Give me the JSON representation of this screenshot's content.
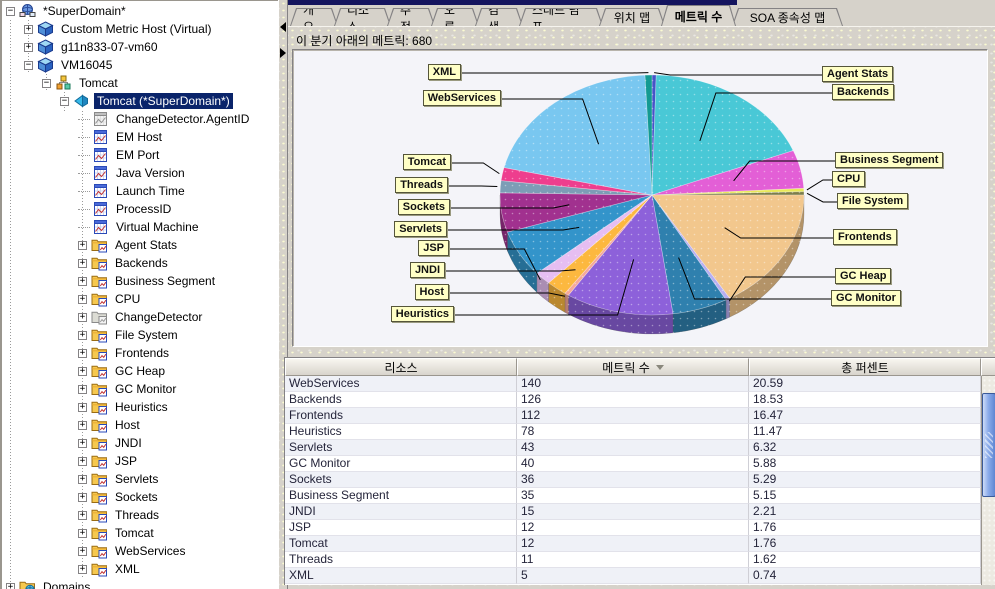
{
  "summary": {
    "text": "이 분기 아래의 메트릭: 680"
  },
  "tabs": {
    "items": [
      {
        "label": "개요",
        "selected": false
      },
      {
        "label": "리소스",
        "selected": false
      },
      {
        "label": "추적",
        "selected": false
      },
      {
        "label": "오류",
        "selected": false
      },
      {
        "label": "검색",
        "selected": false
      },
      {
        "label": "스레드 덤프",
        "selected": false
      },
      {
        "label": "위치 맵",
        "selected": false
      },
      {
        "label": "메트릭 수",
        "selected": true
      },
      {
        "label": "SOA 종속성 맵",
        "selected": false
      }
    ]
  },
  "sidebar": {
    "items": [
      {
        "label": "*SuperDomain*",
        "depth": 0,
        "expander": "-",
        "icon": "domain",
        "selected": false
      },
      {
        "label": "Custom Metric Host (Virtual)",
        "depth": 1,
        "expander": "+",
        "icon": "host",
        "selected": false
      },
      {
        "label": "g11n833-07-vm60",
        "depth": 1,
        "expander": "+",
        "icon": "host",
        "selected": false
      },
      {
        "label": "VM16045",
        "depth": 1,
        "expander": "-",
        "icon": "host",
        "selected": false
      },
      {
        "label": "Tomcat",
        "depth": 2,
        "expander": "-",
        "icon": "process",
        "selected": false
      },
      {
        "label": "Tomcat (*SuperDomain*)",
        "depth": 3,
        "expander": "-",
        "icon": "agent",
        "selected": true
      },
      {
        "label": "ChangeDetector.AgentID",
        "depth": 4,
        "expander": "",
        "icon": "metric-gray",
        "selected": false
      },
      {
        "label": "EM Host",
        "depth": 4,
        "expander": "",
        "icon": "metric",
        "selected": false
      },
      {
        "label": "EM Port",
        "depth": 4,
        "expander": "",
        "icon": "metric",
        "selected": false
      },
      {
        "label": "Java Version",
        "depth": 4,
        "expander": "",
        "icon": "metric",
        "selected": false
      },
      {
        "label": "Launch Time",
        "depth": 4,
        "expander": "",
        "icon": "metric",
        "selected": false
      },
      {
        "label": "ProcessID",
        "depth": 4,
        "expander": "",
        "icon": "metric",
        "selected": false
      },
      {
        "label": "Virtual Machine",
        "depth": 4,
        "expander": "",
        "icon": "metric",
        "selected": false
      },
      {
        "label": "Agent Stats",
        "depth": 4,
        "expander": "+",
        "icon": "folder",
        "selected": false
      },
      {
        "label": "Backends",
        "depth": 4,
        "expander": "+",
        "icon": "folder",
        "selected": false
      },
      {
        "label": "Business Segment",
        "depth": 4,
        "expander": "+",
        "icon": "folder",
        "selected": false
      },
      {
        "label": "CPU",
        "depth": 4,
        "expander": "+",
        "icon": "folder",
        "selected": false
      },
      {
        "label": "ChangeDetector",
        "depth": 4,
        "expander": "+",
        "icon": "folder-gray",
        "selected": false
      },
      {
        "label": "File System",
        "depth": 4,
        "expander": "+",
        "icon": "folder",
        "selected": false
      },
      {
        "label": "Frontends",
        "depth": 4,
        "expander": "+",
        "icon": "folder",
        "selected": false
      },
      {
        "label": "GC Heap",
        "depth": 4,
        "expander": "+",
        "icon": "folder",
        "selected": false
      },
      {
        "label": "GC Monitor",
        "depth": 4,
        "expander": "+",
        "icon": "folder",
        "selected": false
      },
      {
        "label": "Heuristics",
        "depth": 4,
        "expander": "+",
        "icon": "folder",
        "selected": false
      },
      {
        "label": "Host",
        "depth": 4,
        "expander": "+",
        "icon": "folder",
        "selected": false
      },
      {
        "label": "JNDI",
        "depth": 4,
        "expander": "+",
        "icon": "folder",
        "selected": false
      },
      {
        "label": "JSP",
        "depth": 4,
        "expander": "+",
        "icon": "folder",
        "selected": false
      },
      {
        "label": "Servlets",
        "depth": 4,
        "expander": "+",
        "icon": "folder",
        "selected": false
      },
      {
        "label": "Sockets",
        "depth": 4,
        "expander": "+",
        "icon": "folder",
        "selected": false
      },
      {
        "label": "Threads",
        "depth": 4,
        "expander": "+",
        "icon": "folder",
        "selected": false
      },
      {
        "label": "Tomcat",
        "depth": 4,
        "expander": "+",
        "icon": "folder",
        "selected": false
      },
      {
        "label": "WebServices",
        "depth": 4,
        "expander": "+",
        "icon": "folder",
        "selected": false
      },
      {
        "label": "XML",
        "depth": 4,
        "expander": "+",
        "icon": "folder",
        "selected": false
      },
      {
        "label": "Domains",
        "depth": 0,
        "expander": "+",
        "icon": "domains",
        "selected": false
      }
    ]
  },
  "chart_data": {
    "type": "pie",
    "title": "이 분기 아래의 메트릭: 680",
    "total": 680,
    "legend_position": "callout-labels",
    "slices": [
      {
        "name": "Agent Stats",
        "value": 3,
        "color": "#4553c8"
      },
      {
        "name": "Backends",
        "value": 126,
        "color": "#49c8d6"
      },
      {
        "name": "Business Segment",
        "value": 35,
        "color": "#e35fd6"
      },
      {
        "name": "CPU",
        "value": 3,
        "color": "#e9e959"
      },
      {
        "name": "File System",
        "value": 3,
        "color": "#7d7d4a"
      },
      {
        "name": "Frontends",
        "value": 112,
        "color": "#f2c78d"
      },
      {
        "name": "GC Heap",
        "value": 3,
        "color": "#b7aef2"
      },
      {
        "name": "GC Monitor",
        "value": 40,
        "color": "#2f80ae"
      },
      {
        "name": "Heuristics",
        "value": 78,
        "color": "#8d61da"
      },
      {
        "name": "Host",
        "value": 3,
        "color": "#f6a89a"
      },
      {
        "name": "JNDI",
        "value": 15,
        "color": "#fcb83f"
      },
      {
        "name": "JSP",
        "value": 12,
        "color": "#e6bef2"
      },
      {
        "name": "Servlets",
        "value": 43,
        "color": "#3394ca"
      },
      {
        "name": "Sockets",
        "value": 36,
        "color": "#a1318f"
      },
      {
        "name": "Threads",
        "value": 11,
        "color": "#7d9db6"
      },
      {
        "name": "Tomcat",
        "value": 12,
        "color": "#ee3e8e"
      },
      {
        "name": "WebServices",
        "value": 140,
        "color": "#79c7f0"
      },
      {
        "name": "XML",
        "value": 5,
        "color": "#149a92"
      }
    ]
  },
  "table": {
    "columns": [
      "리소스",
      "메트릭 수",
      "총 퍼센트"
    ],
    "sorted_column": "메트릭 수",
    "rows": [
      {
        "resource": "WebServices",
        "count": "140",
        "percent": "20.59"
      },
      {
        "resource": "Backends",
        "count": "126",
        "percent": "18.53"
      },
      {
        "resource": "Frontends",
        "count": "112",
        "percent": "16.47"
      },
      {
        "resource": "Heuristics",
        "count": "78",
        "percent": "11.47"
      },
      {
        "resource": "Servlets",
        "count": "43",
        "percent": "6.32"
      },
      {
        "resource": "GC Monitor",
        "count": "40",
        "percent": "5.88"
      },
      {
        "resource": "Sockets",
        "count": "36",
        "percent": "5.29"
      },
      {
        "resource": "Business Segment",
        "count": "35",
        "percent": "5.15"
      },
      {
        "resource": "JNDI",
        "count": "15",
        "percent": "2.21"
      },
      {
        "resource": "JSP",
        "count": "12",
        "percent": "1.76"
      },
      {
        "resource": "Tomcat",
        "count": "12",
        "percent": "1.76"
      },
      {
        "resource": "Threads",
        "count": "11",
        "percent": "1.62"
      },
      {
        "resource": "XML",
        "count": "5",
        "percent": "0.74"
      }
    ]
  },
  "colors": {
    "selection": "#0a246a",
    "label_bg": "#ffffc6",
    "panel": "#d6d2ca",
    "navy_strip": "#14145e"
  }
}
